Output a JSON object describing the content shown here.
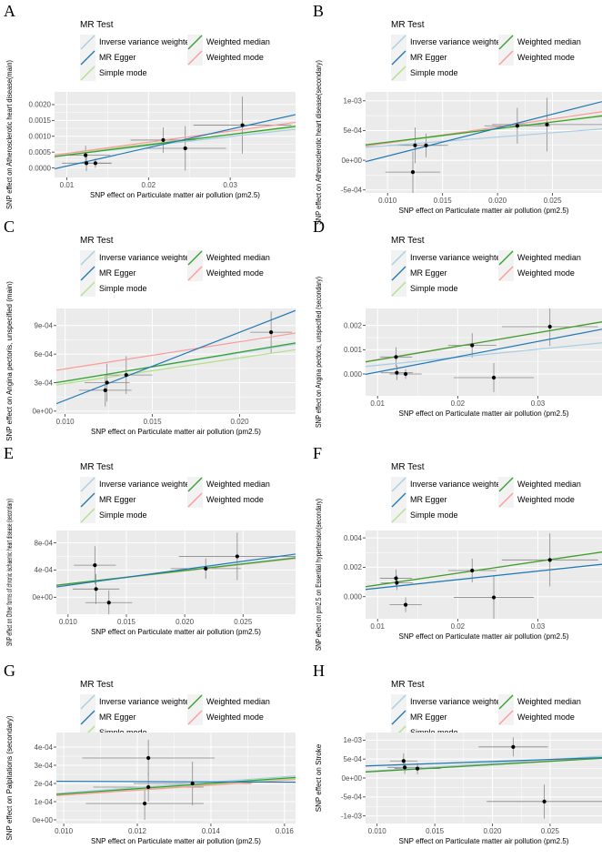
{
  "legend": {
    "title": "MR Test",
    "entries": [
      {
        "name": "Inverse variance weighted",
        "color": "#a6cee3"
      },
      {
        "name": "MR Egger",
        "color": "#1f78b4"
      },
      {
        "name": "Simple mode",
        "color": "#b2df8a"
      },
      {
        "name": "Weighted median",
        "color": "#33a02c"
      },
      {
        "name": "Weighted mode",
        "color": "#fb9a99"
      }
    ]
  },
  "colors": {
    "plot_bg": "#ebebeb",
    "grid": "#ffffff",
    "point": "#000000",
    "errorbar": "#888888"
  },
  "chart_data": [
    {
      "panel": "A",
      "type": "scatter",
      "xlabel": "SNP effect on Particulate matter air pollution (pm2.5)",
      "ylabel": "SNP effect on Atherosclerotic heart disease(main)",
      "xlim": [
        0.0085,
        0.038
      ],
      "ylim": [
        -0.0003,
        0.0024
      ],
      "xticks": [
        0.01,
        0.02,
        0.03
      ],
      "xtick_labels": [
        "0.01",
        "0.02",
        "0.03"
      ],
      "yticks": [
        0,
        0.0005,
        0.001,
        0.0015,
        0.002
      ],
      "ytick_labels": [
        "0.0000",
        "0.0005",
        "0.0010",
        "0.0015",
        "0.0020"
      ],
      "points": [
        {
          "x": 0.0123,
          "y": 0.0004,
          "xerr": 0.003,
          "yerr": 0.0003
        },
        {
          "x": 0.0124,
          "y": 0.00015,
          "xerr": 0.003,
          "yerr": 0.00025
        },
        {
          "x": 0.0135,
          "y": 0.00015,
          "xerr": 0.002,
          "yerr": 0.00015
        },
        {
          "x": 0.0218,
          "y": 0.00088,
          "xerr": 0.004,
          "yerr": 0.0004
        },
        {
          "x": 0.0245,
          "y": 0.00062,
          "xerr": 0.005,
          "yerr": 0.0007
        },
        {
          "x": 0.0315,
          "y": 0.00135,
          "xerr": 0.006,
          "yerr": 0.0009
        }
      ],
      "lines": {
        "Inverse variance weighted": [
          0.00012,
          0.029
        ],
        "MR Egger": [
          -0.00052,
          0.058
        ],
        "Simple mode": [
          0.00015,
          0.03
        ],
        "Weighted median": [
          8e-05,
          0.0325
        ],
        "Weighted mode": [
          0.00011,
          0.035
        ]
      }
    },
    {
      "panel": "B",
      "type": "scatter",
      "xlabel": "SNP effect on Particulate matter air pollution (pm2.5)",
      "ylabel": "SNP effect on Atherosclerotic heart disease(secondary)",
      "xlim": [
        0.008,
        0.0295
      ],
      "ylim": [
        -0.00055,
        0.00115
      ],
      "xticks": [
        0.01,
        0.015,
        0.02,
        0.025
      ],
      "xtick_labels": [
        "0.010",
        "0.015",
        "0.020",
        "0.025"
      ],
      "yticks": [
        -0.0005,
        0,
        0.0005,
        0.001
      ],
      "ytick_labels": [
        "-5e-04",
        "0e+00",
        "5e-04",
        "1e-03"
      ],
      "points": [
        {
          "x": 0.0123,
          "y": -0.0002,
          "xerr": 0.0025,
          "yerr": 0.00035
        },
        {
          "x": 0.0125,
          "y": 0.00025,
          "xerr": 0.0025,
          "yerr": 0.0003
        },
        {
          "x": 0.0135,
          "y": 0.00025,
          "xerr": 0.002,
          "yerr": 0.0002
        },
        {
          "x": 0.0218,
          "y": 0.00058,
          "xerr": 0.003,
          "yerr": 0.0003
        },
        {
          "x": 0.0245,
          "y": 0.0006,
          "xerr": 0.005,
          "yerr": 0.00045
        }
      ],
      "lines": {
        "Inverse variance weighted": [
          0.0001,
          0.0145
        ],
        "MR Egger": [
          -0.0004,
          0.047
        ],
        "Simple mode": [
          5e-05,
          0.024
        ],
        "Weighted median": [
          8e-05,
          0.0225
        ],
        "Weighted mode": [
          2e-05,
          0.027
        ]
      }
    },
    {
      "panel": "C",
      "type": "scatter",
      "xlabel": "SNP effect on Particulate matter air pollution (pm2.5)",
      "ylabel": "SNP effect on Angina pectoris, unspecified (main)",
      "xlim": [
        0.0095,
        0.0232
      ],
      "ylim": [
        -3e-05,
        0.00108
      ],
      "xticks": [
        0.01,
        0.015,
        0.02
      ],
      "xtick_labels": [
        "0.010",
        "0.015",
        "0.020"
      ],
      "yticks": [
        0,
        0.0003,
        0.0006,
        0.0009
      ],
      "ytick_labels": [
        "0e+00",
        "3e-04",
        "6e-04",
        "9e-04"
      ],
      "points": [
        {
          "x": 0.0123,
          "y": 0.00022,
          "xerr": 0.0015,
          "yerr": 0.00017
        },
        {
          "x": 0.0124,
          "y": 0.0003,
          "xerr": 0.0013,
          "yerr": 0.0002
        },
        {
          "x": 0.0135,
          "y": 0.00038,
          "xerr": 0.0015,
          "yerr": 0.0002
        },
        {
          "x": 0.0218,
          "y": 0.00083,
          "xerr": 0.0012,
          "yerr": 0.00022
        }
      ],
      "lines": {
        "Inverse variance weighted": [
          2e-05,
          0.0296
        ],
        "MR Egger": [
          -0.0006,
          0.0715
        ],
        "Simple mode": [
          2e-05,
          0.027
        ],
        "Weighted median": [
          1e-05,
          0.0305
        ],
        "Weighted mode": [
          0.00016,
          0.0285
        ]
      }
    },
    {
      "panel": "D",
      "type": "scatter",
      "xlabel": "SNP effect on Particulate matter air pollution (pm2.5)",
      "ylabel": "SNP effect on Angina pectoris, unspecified (secondary)",
      "xlim": [
        0.0085,
        0.038
      ],
      "ylim": [
        -0.0009,
        0.0027
      ],
      "xticks": [
        0.01,
        0.02,
        0.03
      ],
      "xtick_labels": [
        "0.01",
        "0.02",
        "0.03"
      ],
      "yticks": [
        0,
        0.001,
        0.002
      ],
      "ytick_labels": [
        "0.000",
        "0.001",
        "0.002"
      ],
      "points": [
        {
          "x": 0.0123,
          "y": 0.0007,
          "xerr": 0.002,
          "yerr": 0.0004
        },
        {
          "x": 0.0124,
          "y": 5e-05,
          "xerr": 0.002,
          "yerr": 0.0003
        },
        {
          "x": 0.0135,
          "y": 0.0,
          "xerr": 0.002,
          "yerr": 0.0002
        },
        {
          "x": 0.0218,
          "y": 0.00118,
          "xerr": 0.003,
          "yerr": 0.0005
        },
        {
          "x": 0.0245,
          "y": -0.00015,
          "xerr": 0.005,
          "yerr": 0.0006
        },
        {
          "x": 0.0315,
          "y": 0.00195,
          "xerr": 0.006,
          "yerr": 0.0008
        }
      ],
      "lines": {
        "Inverse variance weighted": [
          3e-05,
          0.033
        ],
        "MR Egger": [
          -0.00055,
          0.063
        ],
        "Simple mode": [
          3e-05,
          0.056
        ],
        "Weighted median": [
          2e-05,
          0.056
        ],
        "Weighted mode": [
          4e-05,
          0.0555
        ]
      }
    },
    {
      "panel": "E",
      "type": "scatter",
      "xlabel": "SNP effect on Particulate matter air pollution (pm2.5)",
      "ylabel": "SNP effect on Other forms of chronic ischaemic heart disease (secondary)",
      "xlim": [
        0.009,
        0.0295
      ],
      "ylim": [
        -0.00025,
        0.00098
      ],
      "xticks": [
        0.01,
        0.015,
        0.02,
        0.025
      ],
      "xtick_labels": [
        "0.010",
        "0.015",
        "0.020",
        "0.025"
      ],
      "yticks": [
        0,
        0.0004,
        0.0008
      ],
      "ytick_labels": [
        "0e+00",
        "4e-04",
        "8e-04"
      ],
      "points": [
        {
          "x": 0.0123,
          "y": 0.00047,
          "xerr": 0.0018,
          "yerr": 0.00028
        },
        {
          "x": 0.0124,
          "y": 0.00012,
          "xerr": 0.002,
          "yerr": 0.00022
        },
        {
          "x": 0.0135,
          "y": -8e-05,
          "xerr": 0.002,
          "yerr": 0.00018
        },
        {
          "x": 0.0218,
          "y": 0.00042,
          "xerr": 0.003,
          "yerr": 0.00015
        },
        {
          "x": 0.0245,
          "y": 0.0006,
          "xerr": 0.005,
          "yerr": 0.00035
        }
      ],
      "lines": {
        "Inverse variance weighted": [
          0.0,
          0.0198
        ],
        "MR Egger": [
          -6e-05,
          0.0235
        ],
        "Simple mode": [
          0.0,
          0.0192
        ],
        "Weighted median": [
          0.0,
          0.0196
        ],
        "Weighted mode": [
          0.0,
          0.0194
        ]
      }
    },
    {
      "panel": "F",
      "type": "scatter",
      "xlabel": "SNP effect on Particulate matter air pollution (pm2.5)",
      "ylabel": "SNP effect on pm2.5 on Essential hypertension(secondary)",
      "xlim": [
        0.0085,
        0.038
      ],
      "ylim": [
        -0.0015,
        0.0045
      ],
      "xticks": [
        0.01,
        0.02,
        0.03
      ],
      "xtick_labels": [
        "0.01",
        "0.02",
        "0.03"
      ],
      "yticks": [
        0,
        0.002,
        0.004
      ],
      "ytick_labels": [
        "0.000",
        "0.002",
        "0.004"
      ],
      "points": [
        {
          "x": 0.0123,
          "y": 0.00125,
          "xerr": 0.002,
          "yerr": 0.0006
        },
        {
          "x": 0.0124,
          "y": 0.00095,
          "xerr": 0.002,
          "yerr": 0.0005
        },
        {
          "x": 0.0135,
          "y": -0.00055,
          "xerr": 0.002,
          "yerr": 0.0005
        },
        {
          "x": 0.0218,
          "y": 0.00178,
          "xerr": 0.003,
          "yerr": 0.0008
        },
        {
          "x": 0.0245,
          "y": -5e-05,
          "xerr": 0.005,
          "yerr": 0.0015
        },
        {
          "x": 0.0315,
          "y": 0.0025,
          "xerr": 0.006,
          "yerr": 0.0018
        }
      ],
      "lines": {
        "Inverse variance weighted": [
          0.0,
          0.058
        ],
        "MR Egger": [
          0.0,
          0.058
        ],
        "Simple mode": [
          0.0,
          0.0795
        ],
        "Weighted median": [
          0.0,
          0.08
        ],
        "Weighted mode": [
          0.0,
          0.08
        ]
      }
    },
    {
      "panel": "G",
      "type": "scatter",
      "xlabel": "SNP effect on Particulate matter air pollution (pm2.5)",
      "ylabel": "SNP effect on Palpitations  (secondary)",
      "xlim": [
        0.0098,
        0.0163
      ],
      "ylim": [
        -2e-05,
        0.00048
      ],
      "xticks": [
        0.01,
        0.012,
        0.014,
        0.016
      ],
      "xtick_labels": [
        "0.010",
        "0.012",
        "0.014",
        "0.016"
      ],
      "yticks": [
        0,
        0.0001,
        0.0002,
        0.0003,
        0.0004
      ],
      "ytick_labels": [
        "0e+00",
        "1e-04",
        "2e-04",
        "3e-04",
        "4e-04"
      ],
      "points": [
        {
          "x": 0.0123,
          "y": 0.00034,
          "xerr": 0.0018,
          "yerr": 0.0001
        },
        {
          "x": 0.0122,
          "y": 9e-05,
          "xerr": 0.0016,
          "yerr": 9e-05
        },
        {
          "x": 0.0123,
          "y": 0.00018,
          "xerr": 0.0015,
          "yerr": 8e-05
        },
        {
          "x": 0.0135,
          "y": 0.0002,
          "xerr": 0.0016,
          "yerr": 0.00012
        }
      ],
      "lines": {
        "Inverse variance weighted": [
          0.0,
          0.0148
        ],
        "MR Egger": [
          0.00022,
          -0.0008
        ],
        "Simple mode": [
          0.0,
          0.014
        ],
        "Weighted median": [
          0.0,
          0.0143
        ],
        "Weighted mode": [
          0.0,
          0.0136
        ]
      }
    },
    {
      "panel": "H",
      "type": "scatter",
      "xlabel": "SNP effect on Particulate matter air pollution (pm2.5)",
      "ylabel": "SNP effect on Stroke",
      "xlim": [
        0.009,
        0.0295
      ],
      "ylim": [
        -0.0012,
        0.0012
      ],
      "xticks": [
        0.01,
        0.015,
        0.02,
        0.025
      ],
      "xtick_labels": [
        "0.010",
        "0.015",
        "0.020",
        "0.025"
      ],
      "yticks": [
        -0.001,
        -0.0005,
        0,
        0.0005,
        0.001
      ],
      "ytick_labels": [
        "-1e-03",
        "-5e-04",
        "0e+00",
        "5e-04",
        "1e-03"
      ],
      "points": [
        {
          "x": 0.0123,
          "y": 0.00045,
          "xerr": 0.0012,
          "yerr": 0.0002
        },
        {
          "x": 0.0124,
          "y": 0.00028,
          "xerr": 0.0015,
          "yerr": 0.00017
        },
        {
          "x": 0.0135,
          "y": 0.00025,
          "xerr": 0.002,
          "yerr": 0.00015
        },
        {
          "x": 0.0218,
          "y": 0.00082,
          "xerr": 0.003,
          "yerr": 0.00025
        },
        {
          "x": 0.0245,
          "y": -0.00062,
          "xerr": 0.005,
          "yerr": 0.00045
        }
      ],
      "lines": {
        "Inverse variance weighted": [
          0.0,
          0.0195
        ],
        "MR Egger": [
          0.00022,
          0.0108
        ],
        "Simple mode": [
          0.0,
          0.0178
        ],
        "Weighted median": [
          0.0,
          0.0176
        ],
        "Weighted mode": [
          0.0,
          0.018
        ]
      }
    }
  ]
}
